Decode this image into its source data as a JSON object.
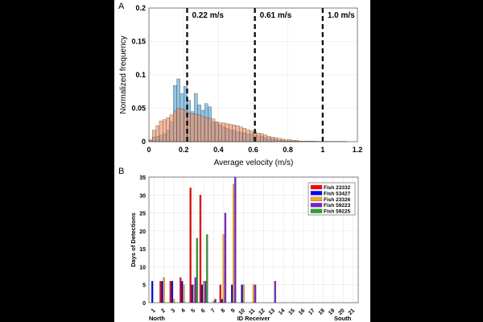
{
  "chart_data": [
    {
      "type": "bar",
      "subtype": "histogram",
      "panel_label": "A",
      "xlabel": "Average velocity (m/s)",
      "ylabel": "Normalized frequency",
      "xlim": [
        0,
        1.2
      ],
      "ylim": [
        0,
        0.2
      ],
      "xticks": [
        "0",
        "0.2",
        "0.4",
        "0.6",
        "0.8",
        "1",
        "1.2"
      ],
      "yticks": [
        "0",
        "0.05",
        "0.1",
        "0.15",
        "0.2"
      ],
      "grid": true,
      "bin_width": 0.02,
      "series": [
        {
          "name": "blue",
          "color": "#4a9fd6",
          "start": 0,
          "values": [
            0.002,
            0.007,
            0.008,
            0.01,
            0.012,
            0.017,
            0.03,
            0.084,
            0.094,
            0.072,
            0.083,
            0.062,
            0.045,
            0.072,
            0.055,
            0.047,
            0.057,
            0.052,
            0.03,
            0.028,
            0.025,
            0.022,
            0.02,
            0.018,
            0.017,
            0.015,
            0.014,
            0.013,
            0.012,
            0.011,
            0.01,
            0.009,
            0.008,
            0.006,
            0.005,
            0.004,
            0.003,
            0.002,
            0.002,
            0.001,
            0.001,
            0.001,
            0.001
          ]
        },
        {
          "name": "orange",
          "color": "#f08a5d",
          "start": 0,
          "values": [
            0.003,
            0.017,
            0.024,
            0.031,
            0.033,
            0.036,
            0.04,
            0.046,
            0.05,
            0.049,
            0.047,
            0.043,
            0.042,
            0.041,
            0.04,
            0.038,
            0.036,
            0.035,
            0.034,
            0.03,
            0.028,
            0.028,
            0.027,
            0.026,
            0.025,
            0.024,
            0.022,
            0.02,
            0.018,
            0.016,
            0.015,
            0.013,
            0.012,
            0.01,
            0.008,
            0.007,
            0.006,
            0.005,
            0.004,
            0.003,
            0.003,
            0.002,
            0.002,
            0.001,
            0.001,
            0.001,
            0.001,
            0.0008,
            0.0006,
            0.0005,
            0.0005,
            0.0004,
            0.0004,
            0.0003,
            0.0003,
            0.0003,
            0.0002
          ]
        }
      ],
      "reference_lines": [
        {
          "x": 0.22,
          "label": "0.22 m/s"
        },
        {
          "x": 0.61,
          "label": "0.61 m/s"
        },
        {
          "x": 1.0,
          "label": "1.0 m/s"
        }
      ]
    },
    {
      "type": "bar",
      "panel_label": "B",
      "xlabel": "ID Receiver",
      "ylabel": "Days of Detections",
      "x_left_note": "North",
      "x_right_note": "South",
      "ylim": [
        0,
        35
      ],
      "yticks": [
        "0",
        "5",
        "10",
        "15",
        "20",
        "25",
        "30",
        "35"
      ],
      "grid": true,
      "legend_position": "top-right",
      "categories": [
        "1",
        "2",
        "3",
        "4",
        "5",
        "6",
        "7",
        "8",
        "9",
        "10",
        "11",
        "12",
        "13",
        "14",
        "15",
        "16",
        "17",
        "18",
        "19",
        "20",
        "21"
      ],
      "series": [
        {
          "name": "Fish 23332",
          "color": "#ff0000",
          "values": [
            0,
            6,
            6,
            7,
            32,
            30,
            0,
            5,
            0,
            0,
            0,
            0,
            0,
            0,
            0,
            0,
            0,
            0,
            0,
            0,
            0
          ]
        },
        {
          "name": "Fish 53427",
          "color": "#0000ff",
          "values": [
            6,
            6,
            6,
            6,
            5,
            5,
            0,
            1,
            5,
            5,
            0,
            0,
            0,
            0,
            0,
            0,
            0,
            0,
            0,
            0,
            0
          ]
        },
        {
          "name": "Fish 23326",
          "color": "#f5a623",
          "values": [
            0,
            7,
            1,
            5,
            5,
            6,
            0.5,
            19,
            33,
            5,
            5,
            0,
            0,
            0,
            0,
            0,
            0,
            0,
            0,
            0,
            0
          ]
        },
        {
          "name": "Fish 59223",
          "color": "#7e1fd4",
          "values": [
            0,
            0,
            0,
            0,
            7,
            6,
            1,
            25,
            35,
            0,
            5,
            0,
            6,
            0,
            0,
            0,
            0,
            0,
            0,
            0,
            0
          ]
        },
        {
          "name": "Fish 59225",
          "color": "#2ca02c",
          "values": [
            0,
            0,
            0,
            0,
            18,
            19,
            0,
            0,
            0,
            0,
            0,
            0,
            0,
            0,
            0,
            0,
            0,
            0,
            0,
            0,
            0
          ]
        }
      ]
    }
  ]
}
